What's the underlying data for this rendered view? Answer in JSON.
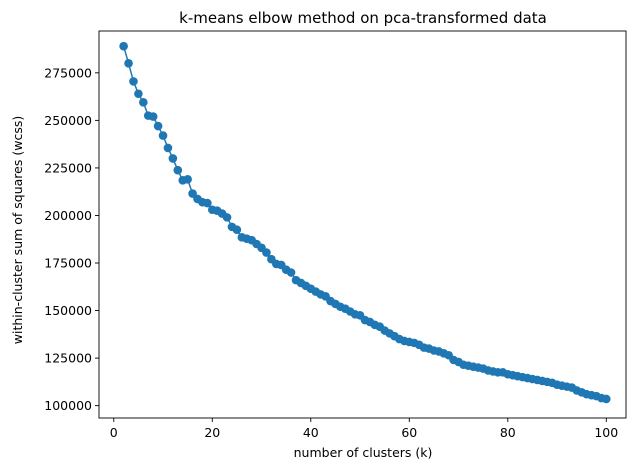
{
  "chart_data": {
    "type": "line",
    "title": "k-means elbow method on pca-transformed data",
    "xlabel": "number of clusters (k)",
    "ylabel": "within-cluster sum of squares (wcss)",
    "xlim": [
      -3,
      104
    ],
    "ylim": [
      93500,
      297000
    ],
    "xticks": [
      0,
      20,
      40,
      60,
      80,
      100
    ],
    "yticks": [
      100000,
      125000,
      150000,
      175000,
      200000,
      225000,
      250000,
      275000
    ],
    "xtick_labels": [
      "0",
      "20",
      "40",
      "60",
      "80",
      "100"
    ],
    "ytick_labels": [
      "100000",
      "125000",
      "150000",
      "175000",
      "200000",
      "225000",
      "250000",
      "275000"
    ],
    "grid": false,
    "marker": "circle",
    "color": "#1f77b4",
    "series": [
      {
        "x": [
          2,
          3,
          4,
          5,
          6,
          7,
          8,
          9,
          10,
          11,
          12,
          13,
          14,
          15,
          16,
          17,
          18,
          19,
          20,
          21,
          22,
          23,
          24,
          25,
          26,
          27,
          28,
          29,
          30,
          31,
          32,
          33,
          34,
          35,
          36,
          37,
          38,
          39,
          40,
          41,
          42,
          43,
          44,
          45,
          46,
          47,
          48,
          49,
          50,
          51,
          52,
          53,
          54,
          55,
          56,
          57,
          58,
          59,
          60,
          61,
          62,
          63,
          64,
          65,
          66,
          67,
          68,
          69,
          70,
          71,
          72,
          73,
          74,
          75,
          76,
          77,
          78,
          79,
          80,
          81,
          82,
          83,
          84,
          85,
          86,
          87,
          88,
          89,
          90,
          91,
          92,
          93,
          94,
          95,
          96,
          97,
          98,
          99,
          100
        ],
        "y": [
          289000,
          280000,
          270500,
          264000,
          259500,
          252500,
          252000,
          247000,
          242000,
          235500,
          230000,
          223800,
          218500,
          219000,
          211500,
          208700,
          207000,
          206500,
          203000,
          202500,
          201000,
          199000,
          194000,
          192500,
          188500,
          187800,
          187000,
          185000,
          183000,
          180500,
          177000,
          174500,
          174000,
          171500,
          170000,
          166000,
          164500,
          163000,
          161500,
          160000,
          158500,
          157500,
          155000,
          153500,
          152000,
          151000,
          149500,
          148000,
          147500,
          145000,
          144000,
          142500,
          141500,
          139500,
          138000,
          136500,
          135000,
          134000,
          133500,
          133000,
          132000,
          130500,
          130000,
          129000,
          128500,
          127500,
          126500,
          124000,
          123000,
          121500,
          121000,
          120500,
          120000,
          119500,
          118500,
          118000,
          117500,
          117500,
          116500,
          116000,
          115500,
          115000,
          114500,
          114000,
          113500,
          113000,
          112500,
          112000,
          111000,
          110500,
          110000,
          109500,
          108000,
          107000,
          106000,
          105500,
          105000,
          104000,
          103500
        ]
      }
    ]
  }
}
